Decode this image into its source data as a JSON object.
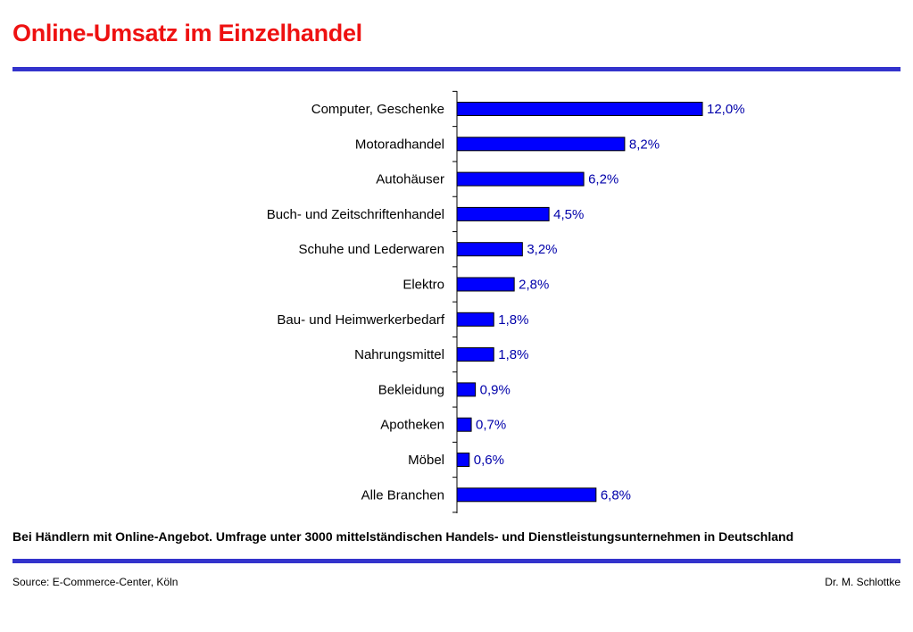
{
  "header": {
    "title": "Online-Umsatz im Einzelhandel"
  },
  "footer": {
    "note": "Bei Händlern mit Online-Angebot. Umfrage unter 3000 mittelständischen Handels- und Dienstleistungsunternehmen in Deutschland",
    "source": "Source: E-Commerce-Center, Köln",
    "author": "Dr. M. Schlottke"
  },
  "colors": {
    "title": "#ee1111",
    "rule": "#3333cc",
    "bar": "#0000ff",
    "value_label": "#0000aa"
  },
  "chart_data": {
    "type": "bar",
    "orientation": "horizontal",
    "categories": [
      "Computer, Geschenke",
      "Motoradhandel",
      "Autohäuser",
      "Buch- und Zeitschriftenhandel",
      "Schuhe und Lederwaren",
      "Elektro",
      "Bau- und Heimwerkerbedarf",
      "Nahrungsmittel",
      "Bekleidung",
      "Apotheken",
      "Möbel",
      "Alle  Branchen"
    ],
    "values": [
      12.0,
      8.2,
      6.2,
      4.5,
      3.2,
      2.8,
      1.8,
      1.8,
      0.9,
      0.7,
      0.6,
      6.8
    ],
    "value_labels": [
      "12,0%",
      "8,2%",
      "6,2%",
      "4,5%",
      "3,2%",
      "2,8%",
      "1,8%",
      "1,8%",
      "0,9%",
      "0,7%",
      "0,6%",
      "6,8%"
    ],
    "xlim": [
      0,
      12
    ],
    "unit": "%",
    "grid": false,
    "legend": "none"
  }
}
